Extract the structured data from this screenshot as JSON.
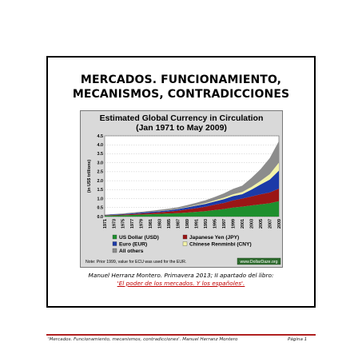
{
  "page": {
    "title_line1": "MERCADOS. FUNCIONAMIENTO,",
    "title_line2": "MECANISMOS, CONTRADICCIONES",
    "caption_line1": "Manuel Herranz Montero. Primavera 2013; II apartado del libro:",
    "caption_line2": "'El poder de los mercados. Y los españoles'.",
    "footer_left": "'Mercados. Funcionamiento, mecanismos, contradicciones'. Manuel Herranz Montero",
    "footer_right": "Página 1"
  },
  "colors": {
    "us_dollar": "#1e8f2e",
    "japanese_yen": "#9b1616",
    "euro": "#1c3aa8",
    "chinese_renminbi": "#f3f3a8",
    "all_others": "#8c8c8c",
    "footer_rule": "#b02020"
  },
  "chart_data": {
    "type": "area",
    "title": "Estimated Global Currency in Circulation",
    "subtitle": "(Jan 1971 to May 2009)",
    "ylabel": "(in US$ trillions)",
    "ylim": [
      0,
      4.5
    ],
    "yticks": [
      "0.0",
      "0.5",
      "1.0",
      "1.5",
      "2.0",
      "2.5",
      "3.0",
      "3.5",
      "4.0",
      "4.5"
    ],
    "xticks": [
      "1971",
      "1973",
      "1975",
      "1977",
      "1979",
      "1981",
      "1983",
      "1985",
      "1987",
      "1989",
      "1991",
      "1993",
      "1995",
      "1997",
      "1999",
      "2001",
      "2003",
      "2005",
      "2007",
      "2009"
    ],
    "x": [
      1971,
      1973,
      1975,
      1977,
      1979,
      1981,
      1983,
      1985,
      1987,
      1989,
      1991,
      1993,
      1995,
      1997,
      1999,
      2001,
      2003,
      2005,
      2007,
      2009
    ],
    "grid": true,
    "stacked": true,
    "series": [
      {
        "name": "US Dollar (USD)",
        "color_key": "us_dollar",
        "values": [
          0.05,
          0.06,
          0.07,
          0.09,
          0.11,
          0.13,
          0.15,
          0.17,
          0.19,
          0.22,
          0.26,
          0.3,
          0.36,
          0.42,
          0.5,
          0.55,
          0.62,
          0.68,
          0.74,
          0.86
        ]
      },
      {
        "name": "Japanese Yen (JPY)",
        "color_key": "japanese_yen",
        "values": [
          0.02,
          0.03,
          0.04,
          0.05,
          0.06,
          0.07,
          0.09,
          0.11,
          0.14,
          0.18,
          0.21,
          0.25,
          0.3,
          0.34,
          0.4,
          0.45,
          0.5,
          0.56,
          0.6,
          0.7
        ]
      },
      {
        "name": "Euro (EUR)",
        "color_key": "euro",
        "values": [
          0.02,
          0.03,
          0.03,
          0.04,
          0.05,
          0.06,
          0.06,
          0.07,
          0.09,
          0.11,
          0.14,
          0.16,
          0.18,
          0.21,
          0.24,
          0.25,
          0.38,
          0.55,
          0.72,
          1.0
        ]
      },
      {
        "name": "Chinese Renminbi (CNY)",
        "color_key": "chinese_renminbi",
        "values": [
          0.0,
          0.0,
          0.0,
          0.0,
          0.0,
          0.0,
          0.01,
          0.01,
          0.01,
          0.02,
          0.03,
          0.04,
          0.06,
          0.08,
          0.1,
          0.12,
          0.15,
          0.2,
          0.3,
          0.45
        ]
      },
      {
        "name": "All others",
        "color_key": "all_others",
        "values": [
          0.02,
          0.02,
          0.03,
          0.04,
          0.05,
          0.06,
          0.07,
          0.08,
          0.09,
          0.11,
          0.13,
          0.16,
          0.19,
          0.24,
          0.3,
          0.35,
          0.5,
          0.65,
          0.9,
          1.2
        ]
      }
    ],
    "legend": [
      "US Dollar (USD)",
      "Japanese Yen (JPY)",
      "Euro (EUR)",
      "Chinese Renminbi (CNY)",
      "All others"
    ],
    "legend_placement": "bottom",
    "note": "Note: Prior 1999, value for ECU was used for the EUR.",
    "watermark": "www.DollarDaze.org"
  }
}
